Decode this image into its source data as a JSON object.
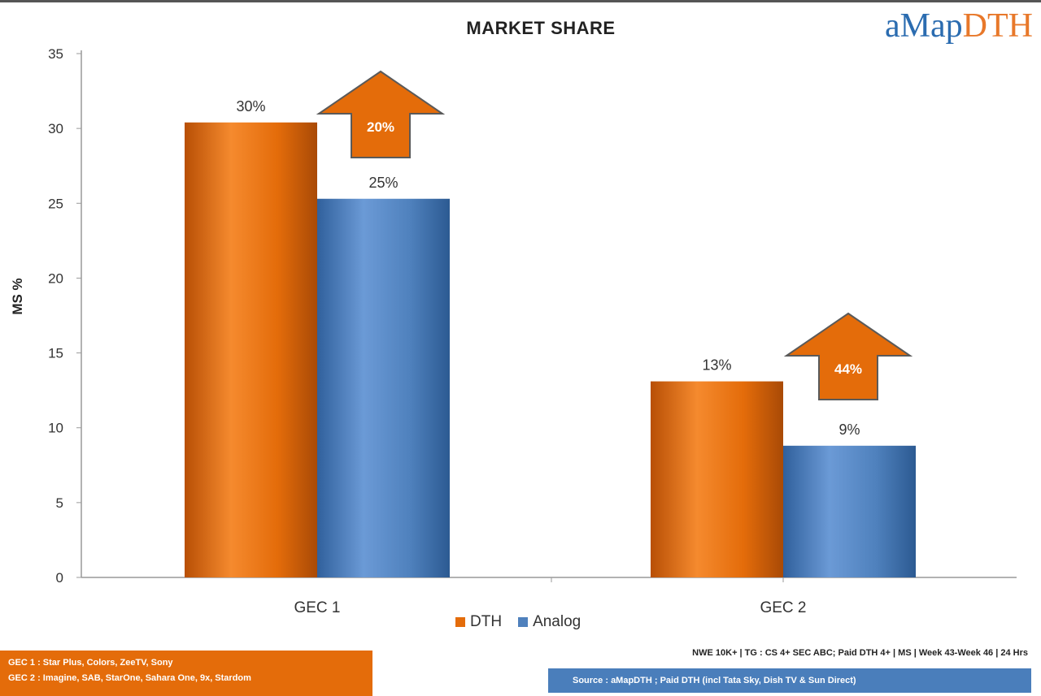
{
  "brand": {
    "part1": "aMap",
    "part2": "DTH"
  },
  "chart_data": {
    "type": "bar",
    "title": "MARKET SHARE",
    "ylabel": "MS %",
    "xlabel": "",
    "categories": [
      "GEC 1",
      "GEC 2"
    ],
    "series": [
      {
        "name": "DTH",
        "values": [
          30.4,
          13.1
        ],
        "labels": [
          "30%",
          "13%"
        ],
        "color": "#e46c0a"
      },
      {
        "name": "Analog",
        "values": [
          25.3,
          8.8
        ],
        "labels": [
          "25%",
          "9%"
        ],
        "color": "#4f81bd"
      }
    ],
    "annotations": [
      "20%",
      "44%"
    ],
    "ylim": [
      0,
      35
    ],
    "yticks": [
      0,
      5,
      10,
      15,
      20,
      25,
      30,
      35
    ],
    "grid": false,
    "legend": "bottom"
  },
  "notes": {
    "line1": "GEC 1 : Star Plus, Colors, ZeeTV, Sony",
    "line2": "GEC 2 : Imagine, SAB, StarOne, Sahara One, 9x, Stardom"
  },
  "footnote": "NWE 10K+ | TG : CS 4+ SEC ABC; Paid DTH 4+ | MS | Week 43-Week 46 | 24 Hrs",
  "source": "Source : aMapDTH ; Paid DTH (incl Tata Sky, Dish TV & Sun Direct)"
}
